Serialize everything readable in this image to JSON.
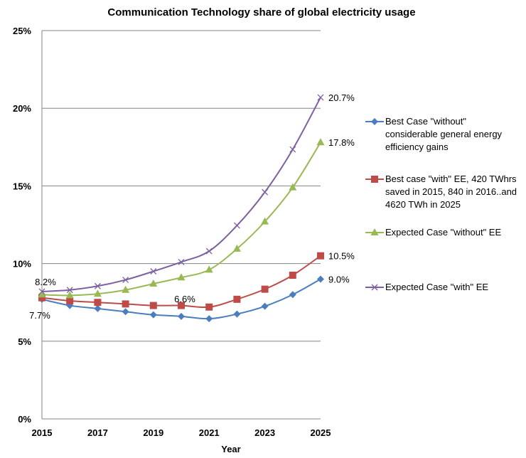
{
  "chart_data": {
    "type": "line",
    "title": "Communication Technology share of global electricity usage",
    "xlabel": "Year",
    "ylabel": "",
    "x": [
      2015,
      2016,
      2017,
      2018,
      2019,
      2020,
      2021,
      2022,
      2023,
      2024,
      2025
    ],
    "x_tick_labels": [
      "2015",
      "2017",
      "2019",
      "2021",
      "2023",
      "2025"
    ],
    "y_tick_labels": [
      "0%",
      "5%",
      "10%",
      "15%",
      "20%",
      "25%"
    ],
    "ylim": [
      0,
      25
    ],
    "xlim": [
      2015,
      2025
    ],
    "grid": "horizontal",
    "legend_position": "right",
    "series": [
      {
        "name": "Best Case \"without\" considerable general energy efficiency gains",
        "color": "#4a7ebf",
        "marker": "diamond",
        "values": [
          7.7,
          7.3,
          7.1,
          6.9,
          6.7,
          6.6,
          6.45,
          6.75,
          7.25,
          8.0,
          9.0
        ]
      },
      {
        "name": "Best case \"with\" EE, 420 TWhrs saved in 2015, 840 in 2016..and 4620 TWh in 2025",
        "color": "#be4b48",
        "marker": "square",
        "values": [
          7.8,
          7.6,
          7.5,
          7.4,
          7.3,
          7.3,
          7.2,
          7.7,
          8.35,
          9.25,
          10.5
        ]
      },
      {
        "name": "Expected Case \"without\" EE",
        "color": "#98b954",
        "marker": "triangle",
        "values": [
          8.0,
          7.95,
          8.05,
          8.3,
          8.7,
          9.1,
          9.6,
          10.95,
          12.7,
          14.9,
          17.8
        ]
      },
      {
        "name": "Expected Case \"with\" EE",
        "color": "#7d60a0",
        "marker": "x",
        "values": [
          8.2,
          8.3,
          8.55,
          8.95,
          9.5,
          10.1,
          10.8,
          12.45,
          14.6,
          17.35,
          20.7
        ]
      }
    ],
    "annotations": [
      {
        "text": "8.2%",
        "x": 2015,
        "series": 3
      },
      {
        "text": "7.7%",
        "x": 2015,
        "series": 0
      },
      {
        "text": "6.6%",
        "x": 2020,
        "series": 0
      },
      {
        "text": "20.7%",
        "x": 2025,
        "series": 3
      },
      {
        "text": "17.8%",
        "x": 2025,
        "series": 2
      },
      {
        "text": "10.5%",
        "x": 2025,
        "series": 1
      },
      {
        "text": "9.0%",
        "x": 2025,
        "series": 0
      }
    ]
  }
}
